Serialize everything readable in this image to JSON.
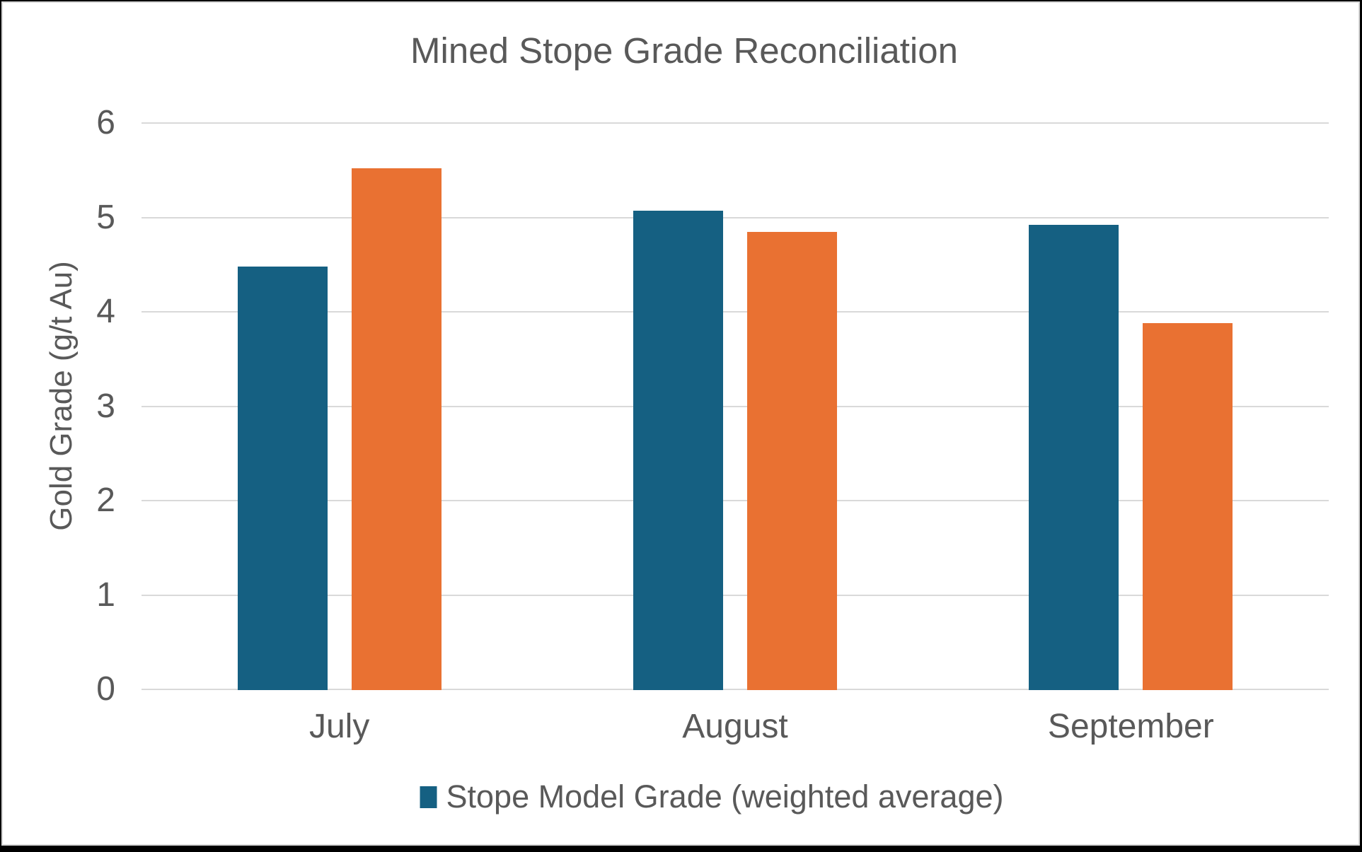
{
  "frame": {
    "outer_background": "#000000",
    "chart_background": "#FFFFFF",
    "chart_border_color": "#D9D9D9"
  },
  "chart_data": {
    "type": "bar",
    "title": "Mined Stope Grade Reconciliation",
    "ylabel": "Gold Grade (g/t Au)",
    "xlabel": "",
    "categories": [
      "July",
      "August",
      "September"
    ],
    "series": [
      {
        "name": "Stope Model Grade (weighted average)",
        "color": "#156082",
        "values": [
          4.48,
          5.07,
          4.92
        ]
      },
      {
        "name": "",
        "color": "#E97132",
        "values": [
          5.52,
          4.85,
          3.88
        ]
      }
    ],
    "ylim": [
      0,
      6
    ],
    "yticks": [
      0,
      1,
      2,
      3,
      4,
      5,
      6
    ],
    "grid": true,
    "gridline_color": "#D9D9D9",
    "text_color": "#595959",
    "legend": {
      "position": "bottom",
      "entries": [
        {
          "label": "Stope Model Grade (weighted average)",
          "color": "#156082"
        }
      ]
    }
  }
}
